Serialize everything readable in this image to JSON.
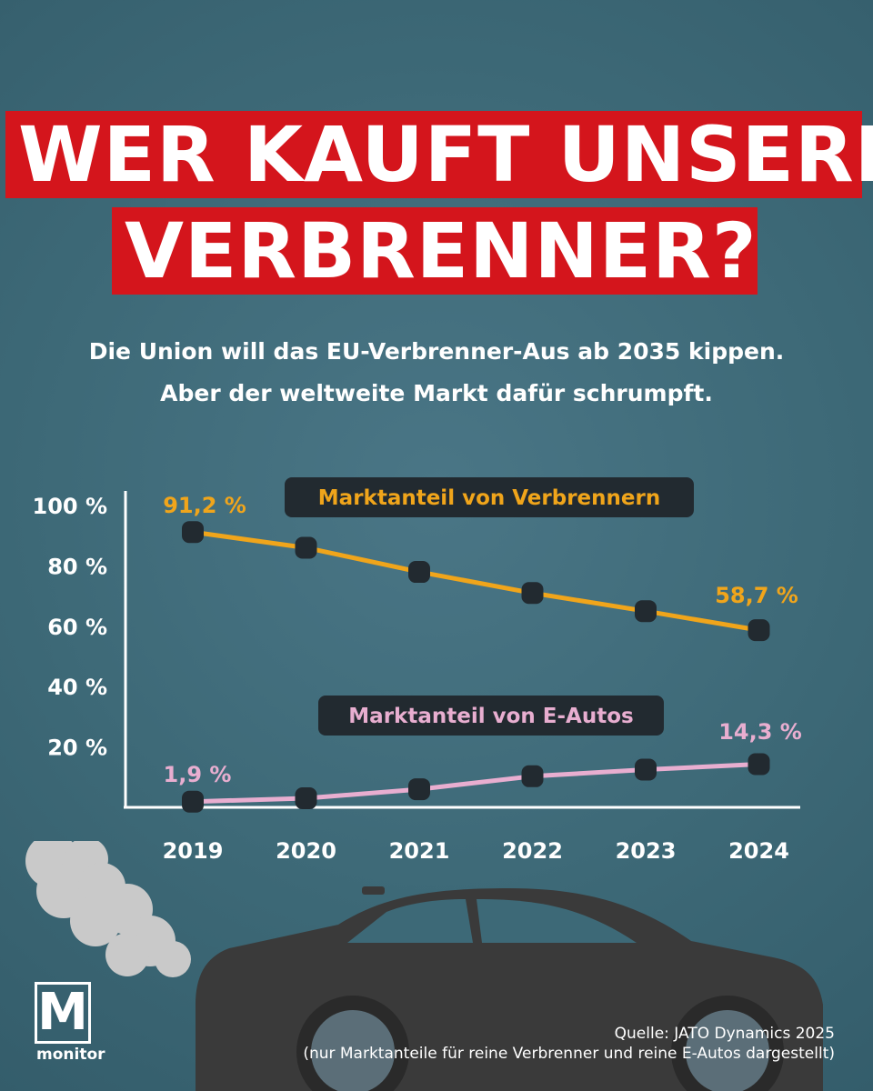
{
  "header": {
    "title_line1": "WER KAUFT UNSERE",
    "title_line2": "VERBRENNER?",
    "subtitle_line1": "Die Union will das EU-Verbrenner-Aus ab 2035 kippen.",
    "subtitle_line2": "Aber der weltweite Markt dafür schrumpft."
  },
  "colors": {
    "background": "#3f6b79",
    "title_bg": "#d4151c",
    "verbrenner": "#f0a51b",
    "eauto": "#e8aed0",
    "marker": "#222a30",
    "label_bg": "#222a30",
    "axis": "#ffffff",
    "car": "#3a3a3a",
    "smoke": "#c9c9c9"
  },
  "chart_data": {
    "type": "line",
    "x": [
      "2019",
      "2020",
      "2021",
      "2022",
      "2023",
      "2024"
    ],
    "y_ticks": [
      "100 %",
      "80 %",
      "60 %",
      "40 %",
      "20 %"
    ],
    "y_tick_values": [
      100,
      80,
      60,
      40,
      20
    ],
    "ylim": [
      0,
      100
    ],
    "xlabel": "",
    "ylabel": "",
    "grid": false,
    "series": [
      {
        "name": "Marktanteil von Verbrennern",
        "color_key": "verbrenner",
        "values": [
          91.2,
          86,
          78,
          71,
          65,
          58.7
        ],
        "start_label": "91,2 %",
        "end_label": "58,7 %"
      },
      {
        "name": "Marktanteil von E-Autos",
        "color_key": "eauto",
        "values": [
          1.9,
          3,
          6,
          10.3,
          12.5,
          14.3
        ],
        "start_label": "1,9 %",
        "end_label": "14,3 %"
      }
    ]
  },
  "branding": {
    "logo_letter": "M",
    "logo_text": "monitor"
  },
  "source": {
    "line1": "Quelle: JATO Dynamics 2025",
    "line2": "(nur Marktanteile für reine Verbrenner und reine E-Autos dargestellt)"
  }
}
